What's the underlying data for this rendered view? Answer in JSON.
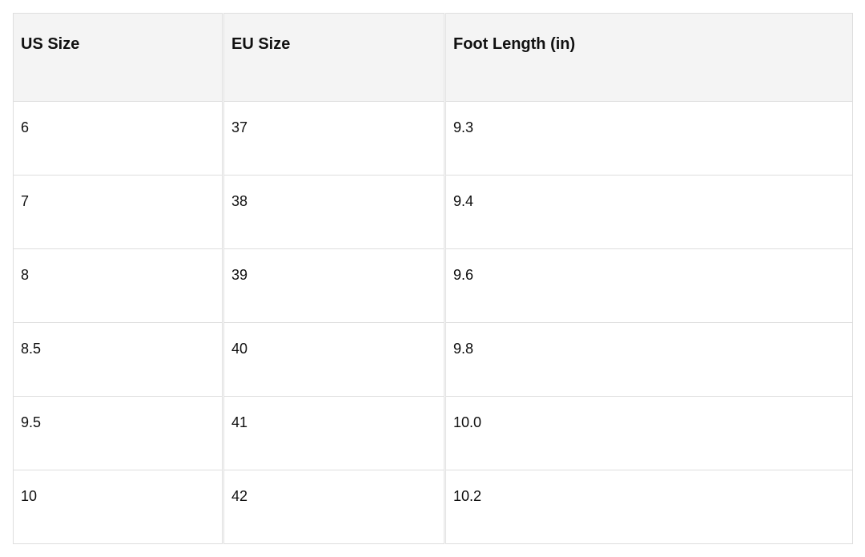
{
  "table": {
    "headers": [
      "US Size",
      "EU Size",
      "Foot Length (in)"
    ],
    "rows": [
      [
        "6",
        "37",
        "9.3"
      ],
      [
        "7",
        "38",
        "9.4"
      ],
      [
        "8",
        "39",
        "9.6"
      ],
      [
        "8.5",
        "40",
        "9.8"
      ],
      [
        "9.5",
        "41",
        "10.0"
      ],
      [
        "10",
        "42",
        "10.2"
      ]
    ]
  }
}
